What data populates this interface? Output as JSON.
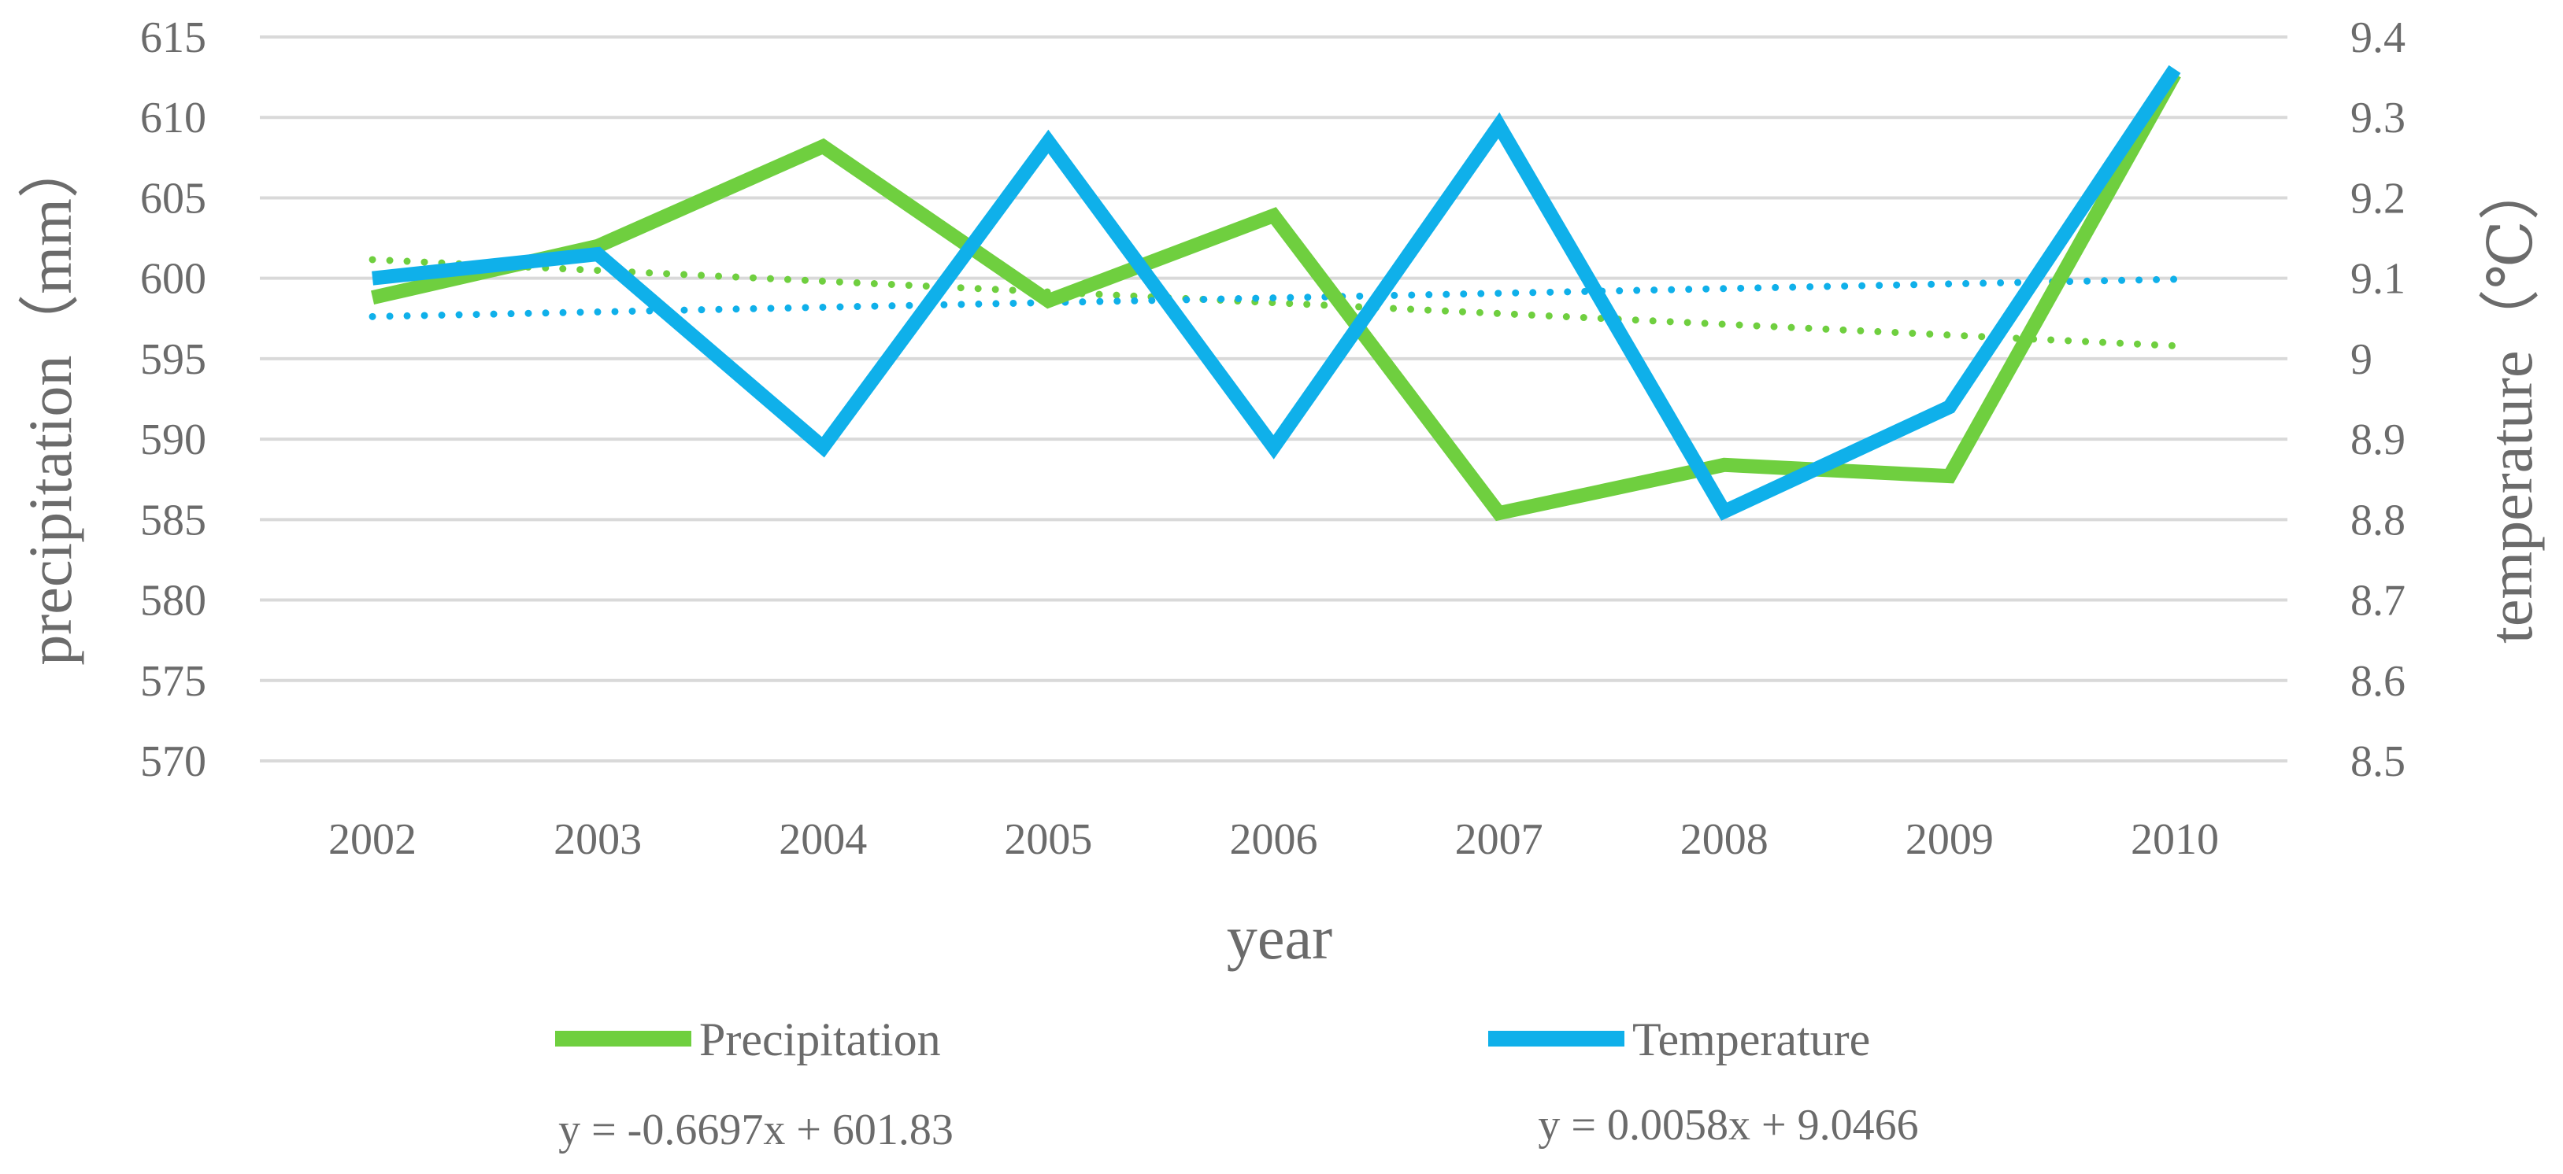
{
  "chart_data": {
    "type": "line",
    "title": "",
    "xlabel": "year",
    "ylabel_left": "precipitation（mm）",
    "ylabel_right": "temperature（℃）",
    "categories": [
      "2002",
      "2003",
      "2004",
      "2005",
      "2006",
      "2007",
      "2008",
      "2009",
      "2010"
    ],
    "y_left": {
      "min": 570,
      "max": 615,
      "step": 5,
      "ticks": [
        "570",
        "575",
        "580",
        "585",
        "590",
        "595",
        "600",
        "605",
        "610",
        "615"
      ]
    },
    "y_right": {
      "min": 8.5,
      "max": 9.4,
      "step": 0.1,
      "ticks": [
        "8.5",
        "8.6",
        "8.7",
        "8.8",
        "8.9",
        "9",
        "9.1",
        "9.2",
        "9.3",
        "9.4"
      ]
    },
    "grid": true,
    "legend_position": "bottom",
    "series": [
      {
        "name": "Precipitation",
        "axis": "left",
        "color": "#6fcf3f",
        "values": [
          598.8,
          602.0,
          608.2,
          598.6,
          603.9,
          585.4,
          588.4,
          587.7,
          612.7
        ],
        "trendline": {
          "slope": -0.6697,
          "intercept": 601.83,
          "equation": "y = -0.6697x + 601.83"
        }
      },
      {
        "name": "Temperature",
        "axis": "right",
        "color": "#0fb0ea",
        "values": [
          9.1,
          9.13,
          8.89,
          9.27,
          8.89,
          9.29,
          8.81,
          8.94,
          9.36
        ],
        "trendline": {
          "slope": 0.0058,
          "intercept": 9.0466,
          "equation": "y = 0.0058x + 9.0466"
        }
      }
    ]
  }
}
